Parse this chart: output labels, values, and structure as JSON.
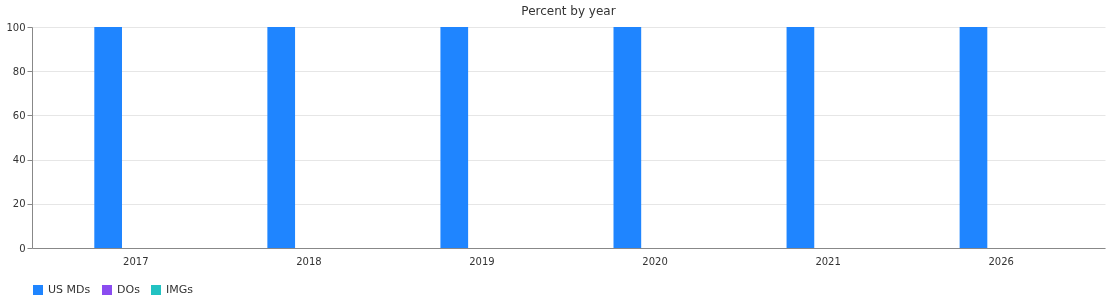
{
  "chart_data": {
    "type": "bar",
    "title": "Percent by year",
    "categories": [
      "2017",
      "2018",
      "2019",
      "2020",
      "2021",
      "2026"
    ],
    "series": [
      {
        "name": "US MDs",
        "color": "#1f85ff",
        "values": [
          100,
          100,
          100,
          100,
          100,
          100
        ]
      },
      {
        "name": "DOs",
        "color": "#8a4cf0",
        "values": [
          0,
          0,
          0,
          0,
          0,
          0
        ]
      },
      {
        "name": "IMGs",
        "color": "#22c2c2",
        "values": [
          0,
          0,
          0,
          0,
          0,
          0
        ]
      }
    ],
    "ylim": [
      0,
      100
    ],
    "yticks": [
      0,
      20,
      40,
      60,
      80,
      100
    ],
    "grid": "y",
    "legend": "bottom"
  }
}
